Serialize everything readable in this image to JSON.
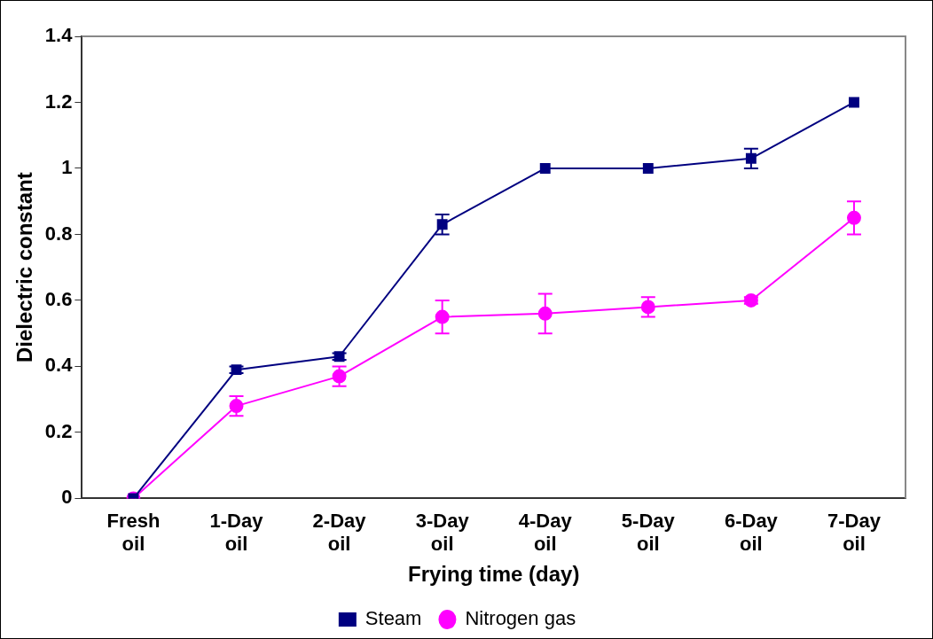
{
  "chart_data": {
    "type": "line",
    "xlabel": "Frying time (day)",
    "ylabel": "Dielectric constant",
    "categories": [
      "Fresh oil",
      "1-Day oil",
      "2-Day oil",
      "3-Day oil",
      "4-Day oil",
      "5-Day oil",
      "6-Day oil",
      "7-Day oil"
    ],
    "series": [
      {
        "name": "Steam",
        "color": "#000080",
        "marker": "square",
        "values": [
          0,
          0.39,
          0.43,
          0.83,
          1.0,
          1.0,
          1.03,
          1.2
        ],
        "errors": [
          null,
          0.01,
          0.01,
          0.03,
          null,
          null,
          0.03,
          null
        ]
      },
      {
        "name": "Nitrogen gas",
        "color": "#ff00ff",
        "marker": "circle",
        "values": [
          0,
          0.28,
          0.37,
          0.55,
          0.56,
          0.58,
          0.6,
          0.85
        ],
        "errors": [
          null,
          0.03,
          0.03,
          0.05,
          0.06,
          0.03,
          0.01,
          0.05
        ]
      }
    ],
    "ylim": [
      0,
      1.4
    ],
    "yticks": [
      0,
      0.2,
      0.4,
      0.6,
      0.8,
      1,
      1.2,
      1.4
    ],
    "grid": false,
    "legend": "bottom",
    "line_style": "solid"
  }
}
